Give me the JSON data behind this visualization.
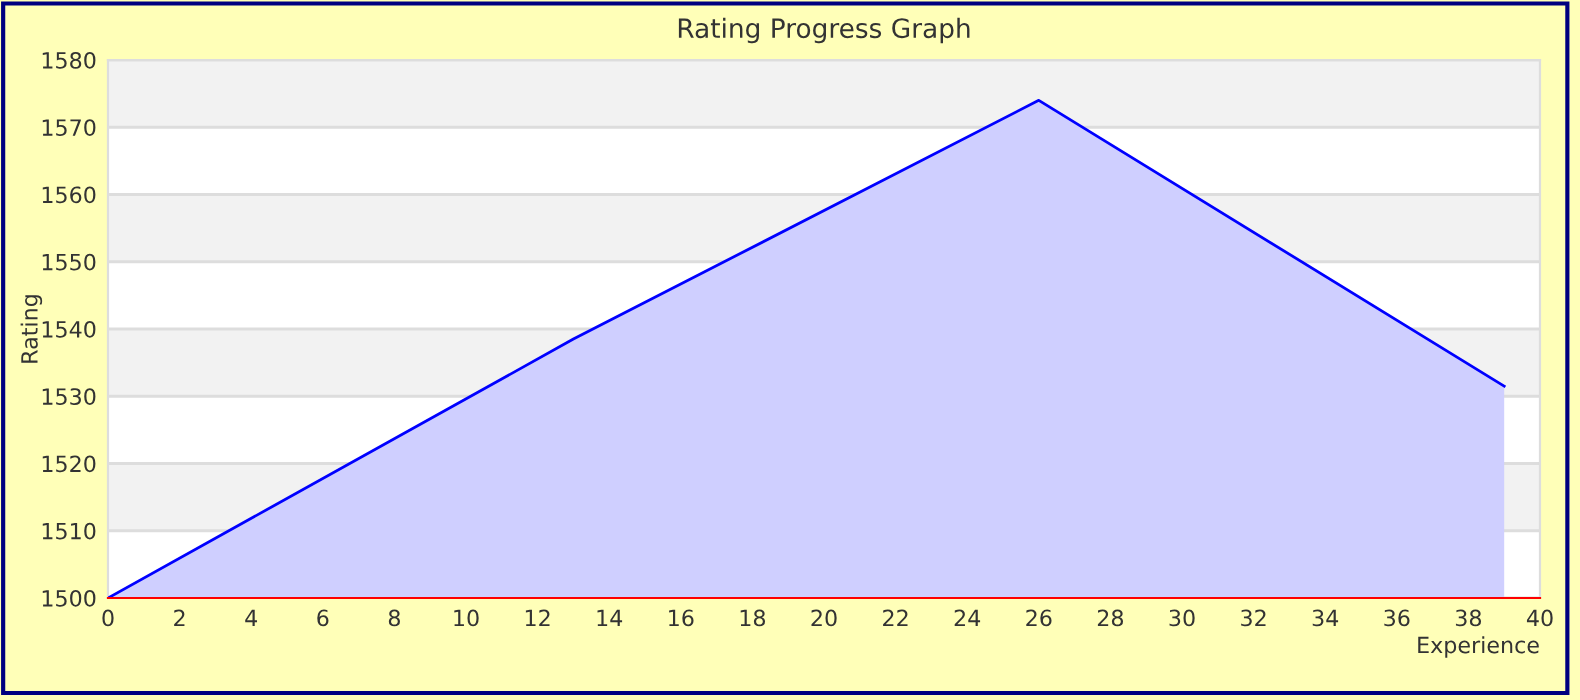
{
  "chart_data": {
    "type": "area",
    "title": "Rating Progress Graph",
    "xlabel": "Experience",
    "ylabel": "Rating",
    "x": [
      0,
      13,
      26,
      39
    ],
    "series": [
      {
        "color": "#0000ff",
        "values": [
          1500,
          1538.5,
          1574,
          1531.5
        ]
      }
    ],
    "xlim": [
      0,
      40
    ],
    "xticks": [
      0,
      2,
      4,
      6,
      8,
      10,
      12,
      14,
      16,
      18,
      20,
      22,
      24,
      26,
      28,
      30,
      32,
      34,
      36,
      38,
      40
    ],
    "ylim": [
      1500,
      1580
    ],
    "yticks": [
      1500,
      1510,
      1520,
      1530,
      1540,
      1550,
      1560,
      1570,
      1580
    ],
    "grid": "y",
    "legend": false
  }
}
